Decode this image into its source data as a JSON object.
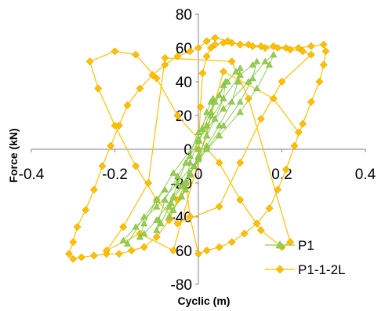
{
  "chart_data": {
    "type": "scatter",
    "title": "",
    "xlabel": "Cyclic (m)",
    "ylabel": "Force (kN)",
    "xlim": [
      -0.4,
      0.4
    ],
    "ylim": [
      -80,
      80
    ],
    "x_ticks": [
      -0.4,
      -0.2,
      0,
      0.2,
      0.4
    ],
    "y_ticks": [
      -80,
      -60,
      -40,
      -20,
      0,
      20,
      40,
      60,
      80
    ],
    "x_tick_labels": [
      "-0.4",
      "-0.2",
      "0",
      "0.2",
      "0.4"
    ],
    "y_tick_labels": [
      "-80",
      "-60",
      "-40",
      "-20",
      "0",
      "20",
      "40",
      "60",
      "80"
    ],
    "grid": false,
    "legend_position": "bottom-right",
    "series": [
      {
        "name": "P1",
        "color": "#92d050",
        "marker": "triangle",
        "x": [
          0.0,
          0.01,
          0.02,
          0.03,
          0.035,
          0.03,
          0.02,
          0.0,
          -0.02,
          -0.03,
          -0.04,
          -0.03,
          -0.02,
          0.0,
          0.03,
          0.05,
          0.06,
          0.065,
          0.06,
          0.04,
          0.02,
          0.0,
          -0.02,
          -0.04,
          -0.06,
          -0.07,
          -0.065,
          -0.05,
          -0.03,
          0.0,
          0.04,
          0.07,
          0.09,
          0.1,
          0.095,
          0.08,
          0.05,
          0.02,
          -0.01,
          -0.04,
          -0.07,
          -0.09,
          -0.1,
          -0.095,
          -0.08,
          -0.05,
          -0.02,
          0.02,
          0.06,
          0.1,
          0.13,
          0.14,
          0.13,
          0.1,
          0.06,
          0.02,
          -0.02,
          -0.06,
          -0.1,
          -0.13,
          -0.14,
          -0.13,
          -0.1,
          -0.06,
          0.0,
          0.06,
          0.12,
          0.16,
          0.18,
          0.17,
          0.14,
          0.1,
          0.05,
          0.0,
          -0.05,
          -0.1,
          -0.15,
          -0.18,
          -0.17,
          -0.13,
          -0.08
        ],
        "y": [
          0,
          12,
          22,
          28,
          30,
          20,
          8,
          -5,
          -15,
          -24,
          -28,
          -20,
          -8,
          5,
          22,
          32,
          38,
          40,
          30,
          18,
          8,
          -4,
          -15,
          -28,
          -36,
          -40,
          -32,
          -20,
          -8,
          10,
          28,
          40,
          46,
          48,
          40,
          28,
          14,
          2,
          -10,
          -22,
          -34,
          -44,
          -48,
          -42,
          -30,
          -16,
          -4,
          14,
          30,
          44,
          50,
          52,
          42,
          28,
          14,
          0,
          -14,
          -28,
          -42,
          -50,
          -52,
          -44,
          -30,
          -14,
          6,
          24,
          40,
          52,
          56,
          50,
          36,
          22,
          8,
          -6,
          -20,
          -34,
          -46,
          -54,
          -56,
          -40,
          -24
        ]
      },
      {
        "name": "P1-1-2L",
        "color": "#ffc000",
        "marker": "diamond",
        "x": [
          0.0,
          0.005,
          0.01,
          0.02,
          0.03,
          0.04,
          0.06,
          0.08,
          0.1,
          0.12,
          0.15,
          0.18,
          0.21,
          0.24,
          0.27,
          0.3,
          0.305,
          0.3,
          0.29,
          0.27,
          0.25,
          0.23,
          0.21,
          0.19,
          0.17,
          0.14,
          0.11,
          0.08,
          0.05,
          0.02,
          0.0,
          -0.02,
          -0.03,
          -0.05,
          -0.07,
          -0.1,
          -0.13,
          -0.16,
          -0.19,
          -0.22,
          -0.25,
          -0.28,
          -0.3,
          -0.31,
          -0.3,
          -0.29,
          -0.27,
          -0.25,
          -0.23,
          -0.21,
          -0.19,
          -0.17,
          -0.14,
          -0.11,
          -0.08,
          -0.05,
          -0.02,
          0.0,
          0.02,
          0.04,
          0.07,
          0.1,
          0.13,
          0.16,
          0.19,
          0.22,
          0.25,
          0.27,
          0.2,
          0.15,
          0.1,
          0.05,
          -0.05,
          -0.1,
          -0.15,
          -0.2,
          -0.24,
          -0.26,
          -0.2,
          -0.15,
          -0.1,
          -0.05,
          0.05,
          0.1,
          0.15,
          0.2,
          0.22,
          0.12,
          0.08,
          -0.08,
          -0.12,
          -0.18,
          -0.22,
          -0.14,
          -0.06,
          0.06,
          0.18,
          0.24
        ],
        "y": [
          0,
          25,
          45,
          55,
          60,
          62,
          63,
          63,
          62,
          62,
          61,
          61,
          60,
          60,
          61,
          62,
          58,
          50,
          40,
          28,
          15,
          2,
          -12,
          -24,
          -35,
          -44,
          -50,
          -55,
          -58,
          -60,
          -62,
          -40,
          -20,
          -30,
          -42,
          -52,
          -58,
          -60,
          -62,
          -62,
          -63,
          -64,
          -65,
          -62,
          -55,
          -46,
          -36,
          -24,
          -10,
          2,
          14,
          26,
          36,
          44,
          50,
          55,
          58,
          60,
          64,
          66,
          64,
          62,
          61,
          60,
          60,
          59,
          58,
          56,
          40,
          18,
          -8,
          -34,
          -44,
          -30,
          -10,
          14,
          36,
          52,
          58,
          56,
          42,
          20,
          -8,
          -30,
          -48,
          -58,
          -55,
          30,
          52,
          54,
          -20,
          -46,
          -60,
          -50,
          -60,
          46,
          30,
          10
        ]
      }
    ]
  }
}
